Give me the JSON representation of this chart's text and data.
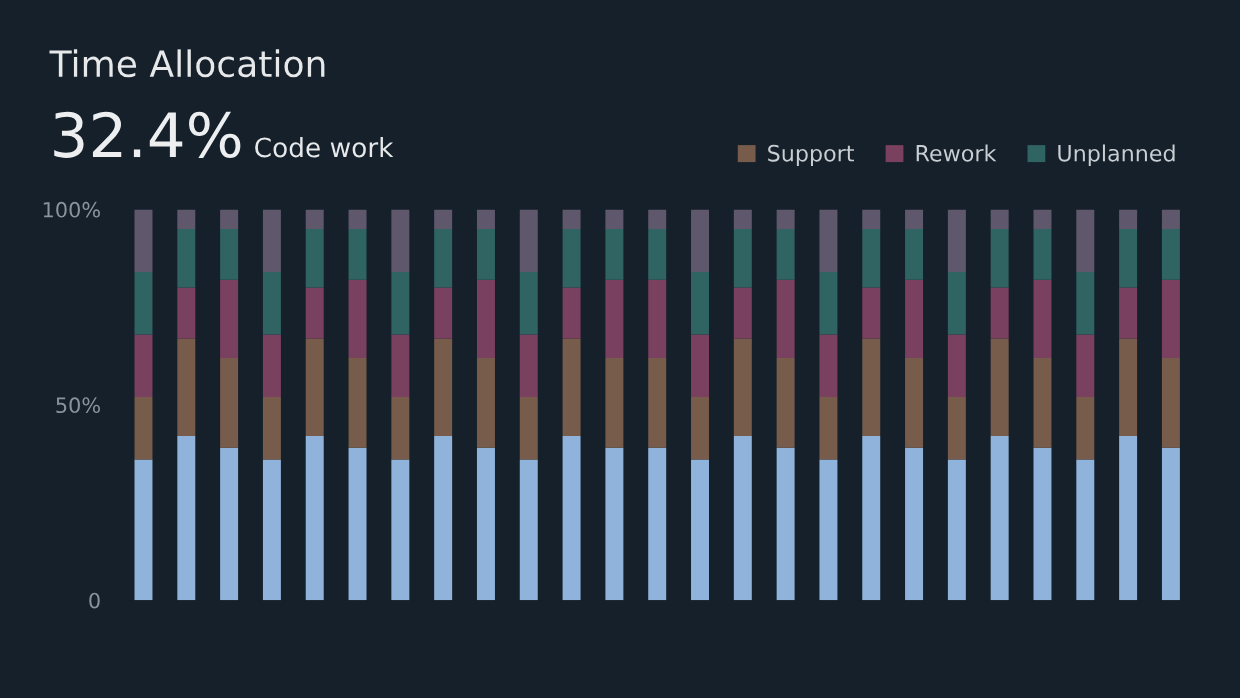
{
  "chart_data": {
    "type": "bar",
    "title": "Time Allocation",
    "subtitle": "32.4% Code work",
    "stacked": true,
    "categories": [
      null,
      null,
      null,
      null,
      null,
      null,
      null,
      null,
      null,
      null,
      null,
      null,
      null,
      null,
      null,
      null,
      null,
      null,
      null,
      null,
      null,
      null,
      null,
      null,
      null
    ],
    "series": [
      {
        "color": "#8fb3da",
        "values": [
          36,
          42,
          39,
          36,
          42,
          39,
          36,
          42,
          39,
          36,
          42,
          39,
          39,
          36,
          42,
          39,
          36,
          42,
          39,
          36,
          42,
          39,
          36,
          42,
          39
        ]
      },
      {
        "name": "Support",
        "color": "#775c4b",
        "values": [
          16,
          25,
          23,
          16,
          25,
          23,
          16,
          25,
          23,
          16,
          25,
          23,
          23,
          16,
          25,
          23,
          16,
          25,
          23,
          16,
          25,
          23,
          16,
          25,
          23
        ]
      },
      {
        "name": "Rework",
        "color": "#7a405f",
        "values": [
          16,
          13,
          20,
          16,
          13,
          20,
          16,
          13,
          20,
          16,
          13,
          20,
          20,
          16,
          13,
          20,
          16,
          13,
          20,
          16,
          13,
          20,
          16,
          13,
          20
        ]
      },
      {
        "name": "Unplanned",
        "color": "#2f6462",
        "values": [
          16,
          15,
          13,
          16,
          15,
          13,
          16,
          15,
          13,
          16,
          15,
          13,
          13,
          16,
          15,
          13,
          16,
          15,
          13,
          16,
          15,
          13,
          16,
          15,
          13
        ]
      },
      {
        "color": "#5f586d",
        "values": [
          16,
          5,
          5,
          16,
          5,
          5,
          16,
          5,
          5,
          16,
          5,
          5,
          5,
          16,
          5,
          5,
          16,
          5,
          5,
          16,
          5,
          5,
          16,
          5,
          5
        ]
      }
    ],
    "ylim": [
      0,
      100
    ],
    "yticks": [
      0,
      {
        "value": 50,
        "label": "50%"
      },
      {
        "value": 100,
        "label": "100%"
      }
    ],
    "tick_labels": "y",
    "grid": false,
    "legend": "top right"
  }
}
